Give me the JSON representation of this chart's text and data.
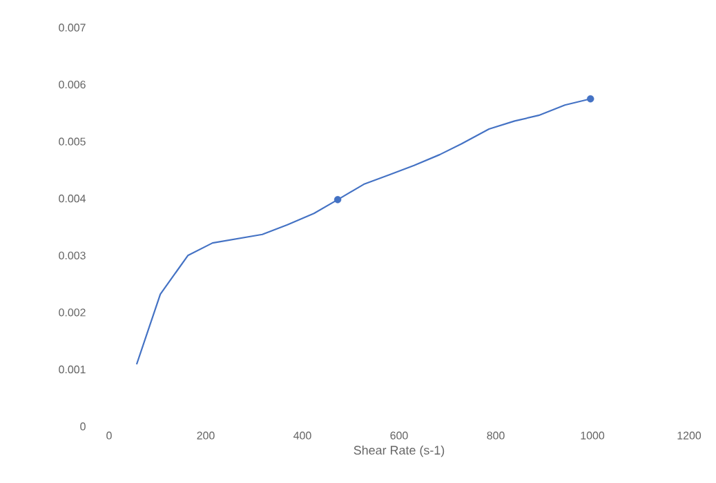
{
  "chart_data": {
    "type": "line",
    "xlabel": "Shear Rate (s-1)",
    "xlim": [
      0,
      1200
    ],
    "xticks": [
      0,
      200,
      400,
      600,
      800,
      1000,
      1200
    ],
    "ylim": [
      0,
      0.007
    ],
    "yticks": [
      0,
      0.001,
      0.002,
      0.003,
      0.004,
      0.005,
      0.006,
      0.007
    ],
    "series": [
      {
        "color": "#4472c4",
        "marker": "none",
        "x": [
          57,
          106,
          163,
          214,
          317,
          369,
          424,
          473,
          527,
          581,
          631,
          684,
          729,
          786,
          839,
          889,
          943,
          996
        ],
        "values": [
          0.00109,
          0.00232,
          0.003,
          0.00322,
          0.00337,
          0.00354,
          0.00374,
          0.00398,
          0.00425,
          0.00442,
          0.00458,
          0.00477,
          0.00496,
          0.00522,
          0.00536,
          0.00546,
          0.00564,
          0.00575
        ]
      },
      {
        "type": "scatter",
        "color": "#4472c4",
        "marker": "circle",
        "x": [
          473,
          996
        ],
        "values": [
          0.00398,
          0.00575
        ]
      }
    ]
  }
}
